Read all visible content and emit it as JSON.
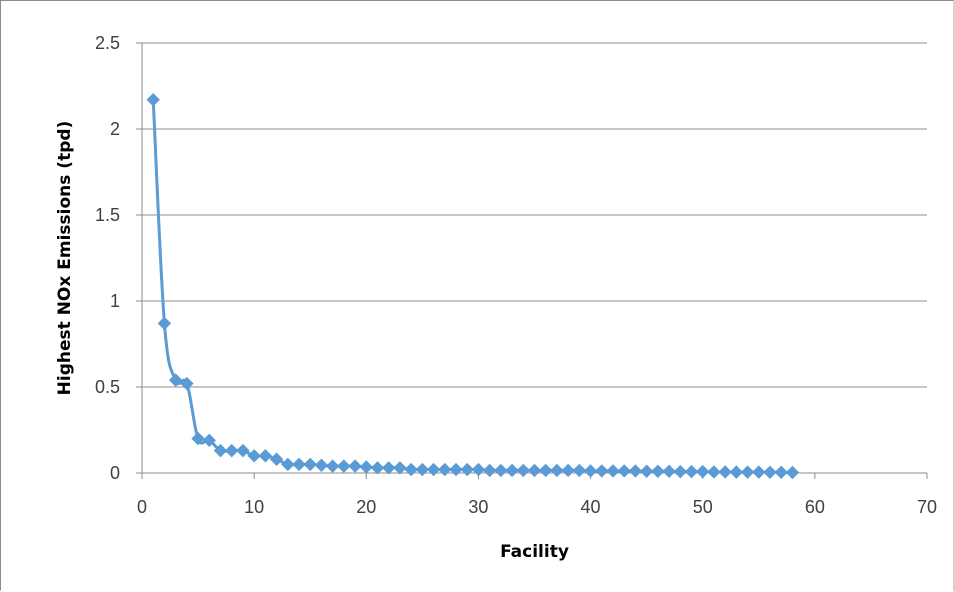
{
  "chart_data": {
    "type": "scatter",
    "title": "",
    "xlabel": "Facility",
    "ylabel": "Highest NOx Emissions (tpd)",
    "xlim": [
      0,
      70
    ],
    "ylim": [
      0,
      2.5
    ],
    "x_ticks": [
      0,
      10,
      20,
      30,
      40,
      50,
      60,
      70
    ],
    "y_ticks": [
      0,
      0.5,
      1,
      1.5,
      2,
      2.5
    ],
    "x_tick_labels": [
      "0",
      "10",
      "20",
      "30",
      "40",
      "50",
      "60",
      "70"
    ],
    "y_tick_labels": [
      "0",
      "0.5",
      "1",
      "1.5",
      "2",
      "2.5"
    ],
    "grid": "horizontal",
    "legend": "none",
    "marker": "diamond",
    "line": "smooth",
    "color": "#5B9BD5",
    "series": [
      {
        "x": [
          1,
          2,
          3,
          4,
          5,
          6,
          7,
          8,
          9,
          10,
          11,
          12,
          13,
          14,
          15,
          16,
          17,
          18,
          19,
          20,
          21,
          22,
          23,
          24,
          25,
          26,
          27,
          28,
          29,
          30,
          31,
          32,
          33,
          34,
          35,
          36,
          37,
          38,
          39,
          40,
          41,
          42,
          43,
          44,
          45,
          46,
          47,
          48,
          49,
          50,
          51,
          52,
          53,
          54,
          55,
          56,
          57,
          58
        ],
        "values": [
          2.17,
          0.87,
          0.54,
          0.52,
          0.2,
          0.19,
          0.13,
          0.13,
          0.13,
          0.1,
          0.1,
          0.08,
          0.05,
          0.05,
          0.05,
          0.045,
          0.04,
          0.04,
          0.04,
          0.035,
          0.03,
          0.03,
          0.03,
          0.02,
          0.02,
          0.02,
          0.02,
          0.02,
          0.02,
          0.02,
          0.015,
          0.015,
          0.015,
          0.015,
          0.015,
          0.015,
          0.015,
          0.015,
          0.015,
          0.012,
          0.012,
          0.012,
          0.012,
          0.012,
          0.01,
          0.01,
          0.01,
          0.008,
          0.008,
          0.008,
          0.006,
          0.006,
          0.005,
          0.005,
          0.005,
          0.004,
          0.004,
          0.003
        ]
      }
    ]
  }
}
